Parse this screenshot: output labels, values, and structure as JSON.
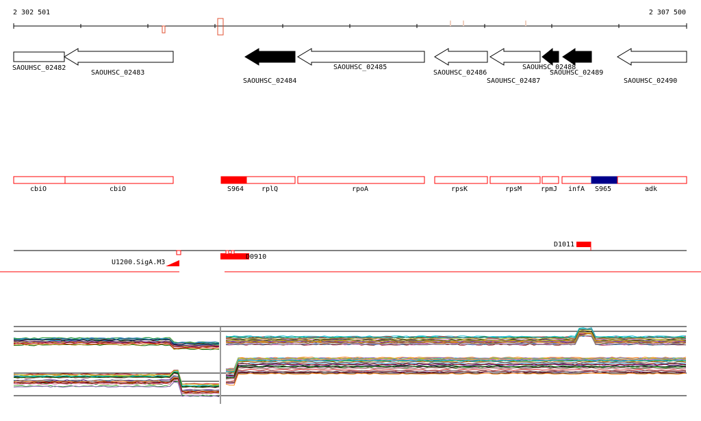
{
  "genome_browser": {
    "coordinate_start": "2 302 501",
    "coordinate_end": "2 307 500",
    "colors": {
      "gene_outline": "#000000",
      "gene_fill_highlight": "#000000",
      "annotation_outline": "#ff0000",
      "annotation_fill": "#ff0000",
      "annotation_blue": "#00008b",
      "axis": "#000000"
    },
    "genes": [
      {
        "label": "SAOUHSC_02482",
        "filled": false
      },
      {
        "label": "SAOUHSC_02483",
        "filled": false
      },
      {
        "label": "SAOUHSC_02484",
        "filled": true
      },
      {
        "label": "SAOUHSC_02485",
        "filled": false
      },
      {
        "label": "SAOUHSC_02486",
        "filled": false
      },
      {
        "label": "SAOUHSC_02487",
        "filled": false
      },
      {
        "label": "SAOUHSC_02488",
        "filled": true
      },
      {
        "label": "SAOUHSC_02489",
        "filled": true
      },
      {
        "label": "SAOUHSC_02490",
        "filled": false
      }
    ],
    "annotations": [
      {
        "label": "cbiO",
        "style": "outline"
      },
      {
        "label": "cbiO",
        "style": "outline"
      },
      {
        "label": "S964",
        "style": "filled"
      },
      {
        "label": "rplQ",
        "style": "outline"
      },
      {
        "label": "rpoA",
        "style": "outline"
      },
      {
        "label": "rpsK",
        "style": "outline"
      },
      {
        "label": "rpsM",
        "style": "outline"
      },
      {
        "label": "rpmJ",
        "style": "outline"
      },
      {
        "label": "infA",
        "style": "outline"
      },
      {
        "label": "S965",
        "style": "blue"
      },
      {
        "label": "adk",
        "style": "outline"
      }
    ],
    "features": [
      {
        "label": "U1200.SigA.M3"
      },
      {
        "label": "D0910"
      },
      {
        "label": "D1011"
      }
    ],
    "expression_tracks_note": ""
  }
}
